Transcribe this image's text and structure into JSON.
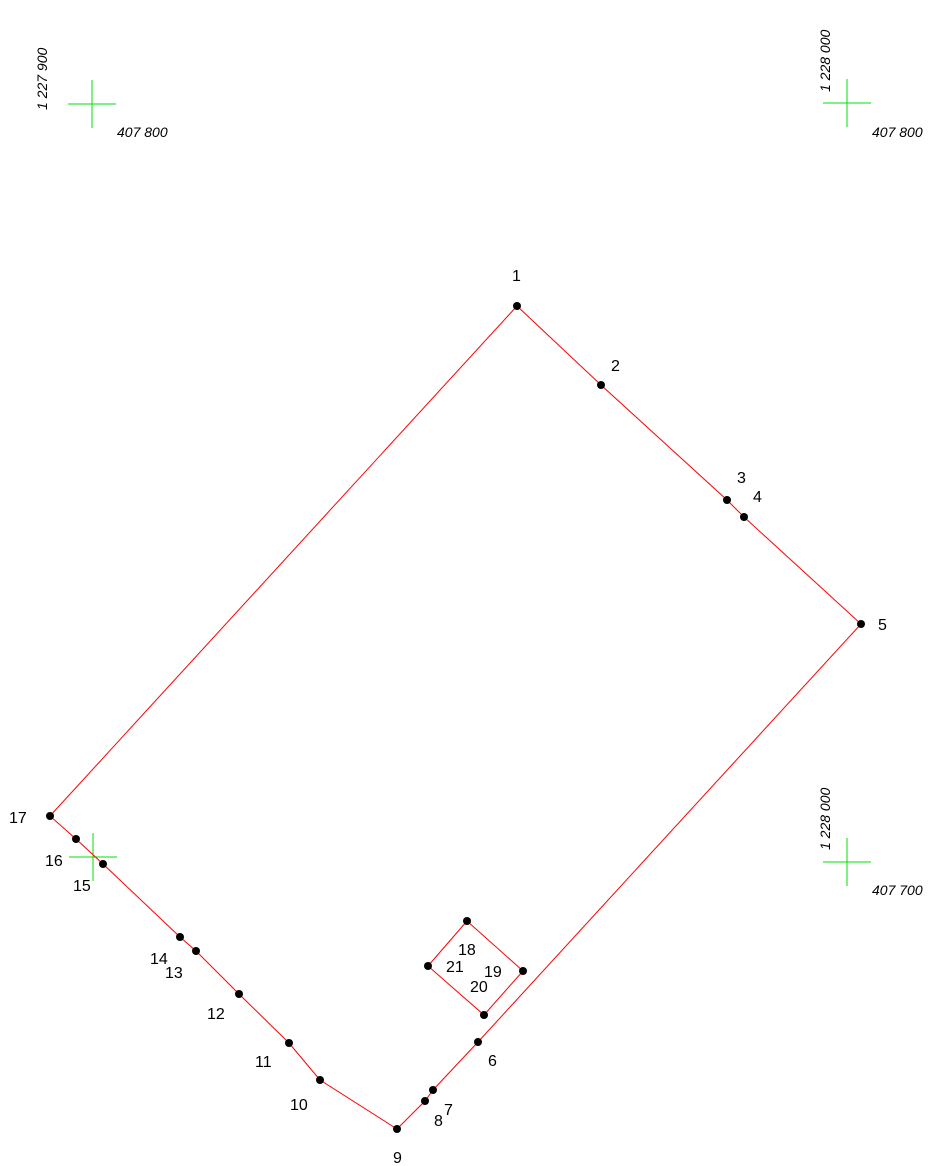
{
  "colors": {
    "boundary": "#ff0000",
    "grid_cross": "#00e000",
    "point": "#000000"
  },
  "grid_marks": [
    {
      "id": "tl",
      "vertical_label": "1 227 900",
      "horizontal_label": "407 800"
    },
    {
      "id": "tr",
      "vertical_label": "1 228 000",
      "horizontal_label": "407 800"
    },
    {
      "id": "br",
      "vertical_label": "1 228 000",
      "horizontal_label": "407 700"
    },
    {
      "id": "bl",
      "vertical_label": "",
      "horizontal_label": ""
    }
  ],
  "points": [
    {
      "id": "1",
      "label": "1"
    },
    {
      "id": "2",
      "label": "2"
    },
    {
      "id": "3",
      "label": "3"
    },
    {
      "id": "4",
      "label": "4"
    },
    {
      "id": "5",
      "label": "5"
    },
    {
      "id": "6",
      "label": "6"
    },
    {
      "id": "7",
      "label": "7"
    },
    {
      "id": "8",
      "label": "8"
    },
    {
      "id": "9",
      "label": "9"
    },
    {
      "id": "10",
      "label": "10"
    },
    {
      "id": "11",
      "label": "11"
    },
    {
      "id": "12",
      "label": "12"
    },
    {
      "id": "13",
      "label": "13"
    },
    {
      "id": "14",
      "label": "14"
    },
    {
      "id": "15",
      "label": "15"
    },
    {
      "id": "16",
      "label": "16"
    },
    {
      "id": "17",
      "label": "17"
    },
    {
      "id": "18",
      "label": "18"
    },
    {
      "id": "19",
      "label": "19"
    },
    {
      "id": "20",
      "label": "20"
    },
    {
      "id": "21",
      "label": "21"
    }
  ],
  "outer_boundary": [
    "1",
    "2",
    "3",
    "4",
    "5",
    "6",
    "7",
    "8",
    "9",
    "10",
    "11",
    "12",
    "13",
    "14",
    "15",
    "16",
    "17"
  ],
  "inner_boundary": [
    "18",
    "19",
    "20",
    "21"
  ]
}
